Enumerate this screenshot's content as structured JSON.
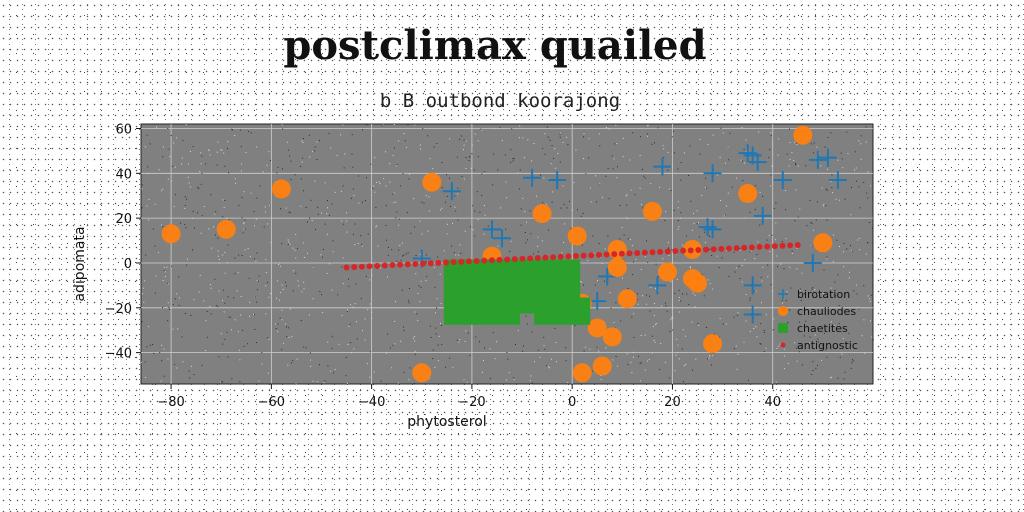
{
  "chart_data": {
    "type": "scatter",
    "title": "postclimax quailed",
    "subtitle": "b B outbond koorajong",
    "xlabel": "phytosterol",
    "ylabel": "adipomata",
    "xlim": [
      -86,
      60
    ],
    "ylim": [
      -54,
      62
    ],
    "xticks": [
      -80,
      -60,
      -40,
      -20,
      0,
      20,
      40
    ],
    "yticks": [
      -40,
      -20,
      0,
      20,
      40,
      60
    ],
    "tick_labels_x": [
      "−80",
      "−60",
      "−40",
      "−20",
      "0",
      "20",
      "40"
    ],
    "tick_labels_y": [
      "−40",
      "−20",
      "0",
      "20",
      "40",
      "60"
    ],
    "grid": true,
    "background": "#808080",
    "legend_position": "lower-right",
    "series": [
      {
        "name": "birotation",
        "marker": "plus",
        "color": "#1f77b4",
        "points": [
          [
            -30,
            2
          ],
          [
            -24,
            32
          ],
          [
            -16,
            15
          ],
          [
            -14,
            11
          ],
          [
            -8,
            38
          ],
          [
            -3,
            37
          ],
          [
            7,
            -6
          ],
          [
            5,
            -17
          ],
          [
            17,
            -10
          ],
          [
            18,
            43
          ],
          [
            27,
            16
          ],
          [
            28,
            15
          ],
          [
            28,
            40
          ],
          [
            35,
            49
          ],
          [
            36,
            48
          ],
          [
            37,
            45
          ],
          [
            38,
            21
          ],
          [
            36,
            -10
          ],
          [
            36,
            -23
          ],
          [
            42,
            37
          ],
          [
            48,
            0
          ],
          [
            49,
            46
          ],
          [
            51,
            47
          ],
          [
            53,
            37
          ]
        ]
      },
      {
        "name": "chauliodes",
        "marker": "circle",
        "color": "#ff7f0e",
        "points": [
          [
            -80,
            13
          ],
          [
            -69,
            15
          ],
          [
            -58,
            33
          ],
          [
            -28,
            36
          ],
          [
            -16,
            3
          ],
          [
            -6,
            22
          ],
          [
            -2,
            -11
          ],
          [
            1,
            12
          ],
          [
            2,
            -49
          ],
          [
            2,
            -18
          ],
          [
            5,
            -29
          ],
          [
            6,
            -46
          ],
          [
            8,
            -33
          ],
          [
            9,
            6
          ],
          [
            9,
            -2
          ],
          [
            11,
            -16
          ],
          [
            16,
            23
          ],
          [
            19,
            -4
          ],
          [
            24,
            -7
          ],
          [
            25,
            -9
          ],
          [
            24,
            6
          ],
          [
            28,
            -36
          ],
          [
            35,
            31
          ],
          [
            46,
            57
          ],
          [
            50,
            9
          ],
          [
            -30,
            -49
          ]
        ]
      },
      {
        "name": "chaetites",
        "marker": "square",
        "color": "#2ca02c",
        "points": [
          [
            -24,
            -2
          ],
          [
            -24,
            -8
          ],
          [
            -24,
            -14
          ],
          [
            -24,
            -19
          ],
          [
            -24,
            -24
          ],
          [
            -21,
            -2
          ],
          [
            -21,
            -8
          ],
          [
            -21,
            -14
          ],
          [
            -21,
            -19
          ],
          [
            -21,
            -24
          ],
          [
            -18,
            -2
          ],
          [
            -18,
            -8
          ],
          [
            -18,
            -14
          ],
          [
            -18,
            -19
          ],
          [
            -18,
            -24
          ],
          [
            -15,
            -2
          ],
          [
            -15,
            -8
          ],
          [
            -15,
            -14
          ],
          [
            -15,
            -19
          ],
          [
            -15,
            -24
          ],
          [
            -12,
            -2
          ],
          [
            -12,
            -8
          ],
          [
            -12,
            -14
          ],
          [
            -12,
            -19
          ],
          [
            -12,
            -24
          ],
          [
            -9,
            -2
          ],
          [
            -9,
            -8
          ],
          [
            -9,
            -14
          ],
          [
            -9,
            -19
          ],
          [
            -6,
            -2
          ],
          [
            -6,
            -8
          ],
          [
            -6,
            -14
          ],
          [
            -6,
            -19
          ],
          [
            -6,
            -24
          ],
          [
            -3,
            -2
          ],
          [
            -3,
            -8
          ],
          [
            -3,
            -14
          ],
          [
            -3,
            -19
          ],
          [
            -3,
            -24
          ],
          [
            0,
            -2
          ],
          [
            0,
            -8
          ],
          [
            0,
            -14
          ],
          [
            0,
            -19
          ],
          [
            0,
            -24
          ],
          [
            2,
            -19
          ],
          [
            2,
            -24
          ]
        ]
      },
      {
        "name": "antignostic",
        "marker": "dot",
        "color": "#d62728",
        "line": {
          "x_start": -45,
          "x_end": 45,
          "y_start": -2,
          "y_end": 8,
          "count": 60
        }
      }
    ]
  }
}
